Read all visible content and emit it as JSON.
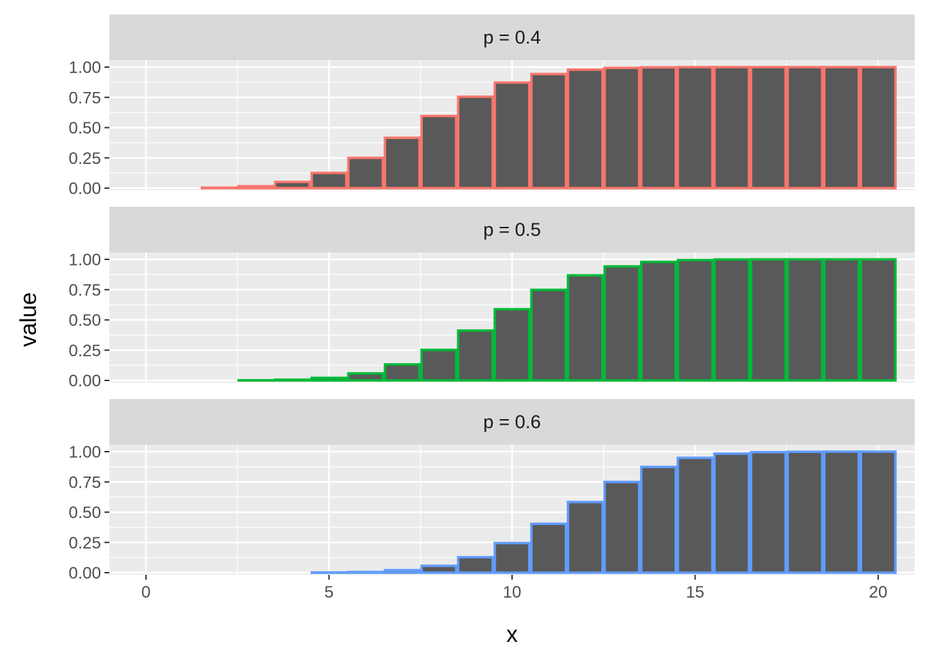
{
  "chart_data": {
    "type": "bar",
    "xlabel": "x",
    "ylabel": "value",
    "x": [
      0,
      1,
      2,
      3,
      4,
      5,
      6,
      7,
      8,
      9,
      10,
      11,
      12,
      13,
      14,
      15,
      16,
      17,
      18,
      19,
      20
    ],
    "xlim": [
      -0.5,
      20.5
    ],
    "ylim": [
      0,
      1
    ],
    "x_ticks": [
      "0",
      "5",
      "10",
      "15",
      "20"
    ],
    "y_ticks": [
      "0.00",
      "0.25",
      "0.50",
      "0.75",
      "1.00"
    ],
    "grid": true,
    "bar_fill": "#595959",
    "panel_background": "#ebebeb",
    "strip_background": "#d9d9d9",
    "panels": [
      {
        "label": "p = 0.4",
        "color": "#f8766d",
        "values": [
          0.0,
          0.0,
          0.004,
          0.016,
          0.051,
          0.126,
          0.25,
          0.416,
          0.596,
          0.755,
          0.872,
          0.943,
          0.979,
          0.994,
          0.998,
          1.0,
          1.0,
          1.0,
          1.0,
          1.0,
          1.0
        ]
      },
      {
        "label": "p = 0.5",
        "color": "#00ba38",
        "values": [
          0.0,
          0.0,
          0.0,
          0.001,
          0.006,
          0.021,
          0.058,
          0.132,
          0.252,
          0.412,
          0.588,
          0.748,
          0.868,
          0.942,
          0.979,
          0.994,
          0.999,
          1.0,
          1.0,
          1.0,
          1.0
        ]
      },
      {
        "label": "p = 0.6",
        "color": "#619cff",
        "values": [
          0.0,
          0.0,
          0.0,
          0.0,
          0.0,
          0.002,
          0.006,
          0.021,
          0.057,
          0.128,
          0.245,
          0.404,
          0.584,
          0.75,
          0.874,
          0.949,
          0.984,
          0.996,
          0.999,
          1.0,
          1.0
        ]
      }
    ]
  }
}
